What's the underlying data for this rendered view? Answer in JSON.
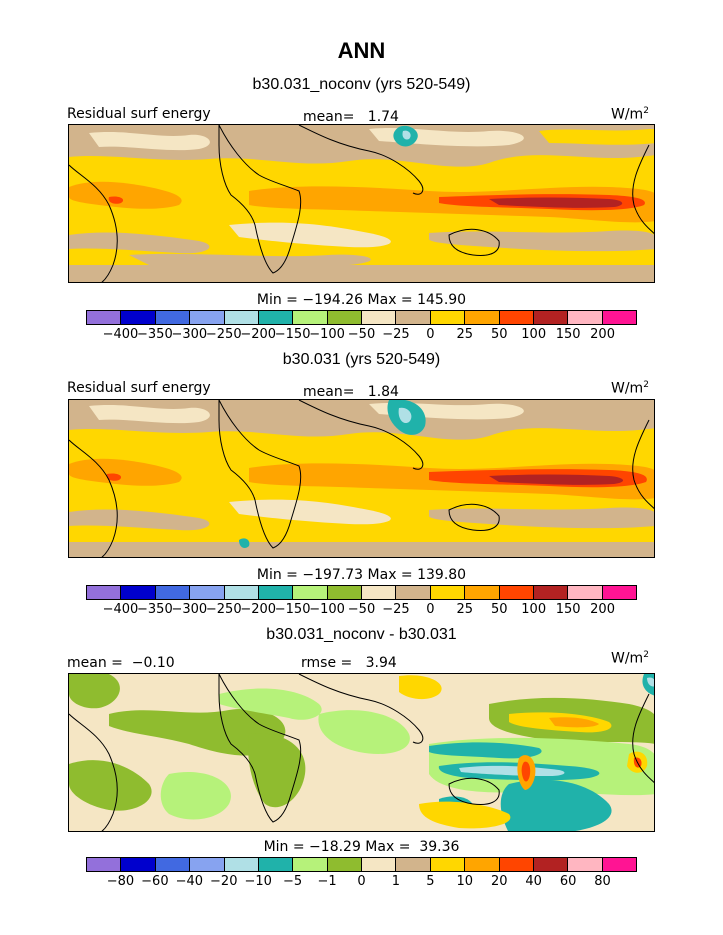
{
  "page": {
    "title": "ANN"
  },
  "colors": {
    "anomaly_panels": [
      "#9370db",
      "#0000cd",
      "#4169e1",
      "#87a3f0",
      "#b0e0e6",
      "#20b2aa",
      "#b6f27a",
      "#8fbc2f",
      "#f5e6c4",
      "#d2b48c",
      "#ffd700",
      "#ffa500",
      "#ff4500",
      "#b22222",
      "#ffb6c1",
      "#ff1493"
    ],
    "difference_panel": [
      "#9370db",
      "#0000cd",
      "#4169e1",
      "#87a3f0",
      "#b0e0e6",
      "#20b2aa",
      "#b6f27a",
      "#8fbc2f",
      "#f5e6c4",
      "#d2b48c",
      "#ffd700",
      "#ffa500",
      "#ff4500",
      "#b22222",
      "#ffb6c1",
      "#ff1493"
    ]
  },
  "panels": [
    {
      "subtitle": "b30.031_noconv (yrs 520-549)",
      "left_label": "Residual surf energy",
      "mean_label": "mean=   1.74",
      "unit": "W/m",
      "unit_sup": "2",
      "minmax": "Min = −194.26 Max = 145.90",
      "ticks": [
        "−400",
        "−350",
        "−300",
        "−250",
        "−200",
        "−150",
        "−100",
        "−50",
        "−25",
        "0",
        "25",
        "50",
        "100",
        "150",
        "200"
      ]
    },
    {
      "subtitle": "b30.031 (yrs 520-549)",
      "left_label": "Residual surf energy",
      "mean_label": "mean=   1.84",
      "unit": "W/m",
      "unit_sup": "2",
      "minmax": "Min = −197.73 Max = 139.80",
      "ticks": [
        "−400",
        "−350",
        "−300",
        "−250",
        "−200",
        "−150",
        "−100",
        "−50",
        "−25",
        "0",
        "25",
        "50",
        "100",
        "150",
        "200"
      ]
    },
    {
      "subtitle": "b30.031_noconv - b30.031",
      "left_label": "mean =  −0.10",
      "mean_label": "rmse =   3.94",
      "unit": "W/m",
      "unit_sup": "2",
      "minmax": "Min = −18.29 Max =  39.36",
      "ticks": [
        "−80",
        "−60",
        "−40",
        "−20",
        "−10",
        "−5",
        "−1",
        "0",
        "1",
        "5",
        "10",
        "20",
        "40",
        "60",
        "80"
      ]
    }
  ]
}
